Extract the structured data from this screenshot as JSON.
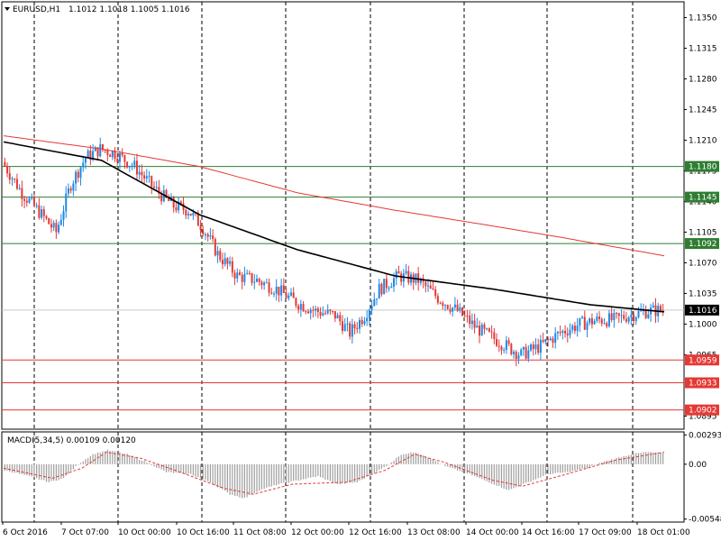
{
  "header": {
    "symbol_label": "EURUSD,H1",
    "ohlc": "1.1012 1.1018 1.1005 1.1016"
  },
  "macd": {
    "label": "MACD(5,34,5) 0.00109 0.00120",
    "axis_labels": [
      {
        "text": "0.00293",
        "value": 0.00293
      },
      {
        "text": "0.00",
        "value": 0.0
      },
      {
        "text": "-0.00548",
        "value": -0.00548
      }
    ]
  },
  "chart_data": {
    "type": "candlestick",
    "symbol": "EURUSD",
    "timeframe": "H1",
    "price_range": [
      1.088,
      1.1368
    ],
    "price_axis_labels": [
      {
        "text": "1.1350",
        "value": 1.135
      },
      {
        "text": "1.1315",
        "value": 1.1315
      },
      {
        "text": "1.1280",
        "value": 1.128
      },
      {
        "text": "1.1245",
        "value": 1.1245
      },
      {
        "text": "1.1210",
        "value": 1.121
      },
      {
        "text": "1.1175",
        "value": 1.1175
      },
      {
        "text": "1.1140",
        "value": 1.114
      },
      {
        "text": "1.1105",
        "value": 1.1105
      },
      {
        "text": "1.1070",
        "value": 1.107
      },
      {
        "text": "1.1035",
        "value": 1.1035
      },
      {
        "text": "1.1000",
        "value": 1.1
      },
      {
        "text": "1.0965",
        "value": 1.0965
      },
      {
        "text": "1.0895",
        "value": 1.0895
      }
    ],
    "time_labels": [
      "6 Oct 2016",
      "7 Oct 07:00",
      "10 Oct 00:00",
      "10 Oct 16:00",
      "11 Oct 08:00",
      "12 Oct 00:00",
      "12 Oct 16:00",
      "13 Oct 08:00",
      "14 Oct 00:00",
      "14 Oct 16:00",
      "17 Oct 09:00",
      "18 Oct 01:00"
    ],
    "levels": [
      {
        "text": "1.1180",
        "value": 1.118,
        "color": "#2e7d32"
      },
      {
        "text": "1.1145",
        "value": 1.1145,
        "color": "#2e7d32"
      },
      {
        "text": "1.1092",
        "value": 1.1092,
        "color": "#2e7d32"
      },
      {
        "text": "1.0959",
        "value": 1.0959,
        "color": "#e53935"
      },
      {
        "text": "1.0933",
        "value": 1.0933,
        "color": "#e53935"
      },
      {
        "text": "1.0902",
        "value": 1.0902,
        "color": "#e53935"
      }
    ],
    "current_price": {
      "text": "1.1016",
      "value": 1.1016
    },
    "close_path": [
      [
        0,
        1.1185
      ],
      [
        8,
        1.115
      ],
      [
        16,
        1.1125
      ],
      [
        22,
        1.1105
      ],
      [
        28,
        1.116
      ],
      [
        34,
        1.119
      ],
      [
        40,
        1.12
      ],
      [
        46,
        1.1195
      ],
      [
        54,
        1.118
      ],
      [
        62,
        1.1155
      ],
      [
        70,
        1.1135
      ],
      [
        76,
        1.113
      ],
      [
        82,
        1.111
      ],
      [
        88,
        1.108
      ],
      [
        96,
        1.1055
      ],
      [
        104,
        1.105
      ],
      [
        112,
        1.104
      ],
      [
        120,
        1.1025
      ],
      [
        128,
        1.1015
      ],
      [
        136,
        1.101
      ],
      [
        142,
        1.099
      ],
      [
        148,
        1.101
      ],
      [
        154,
        1.104
      ],
      [
        162,
        1.1055
      ],
      [
        170,
        1.105
      ],
      [
        178,
        1.103
      ],
      [
        186,
        1.1015
      ],
      [
        194,
        1.0995
      ],
      [
        200,
        1.0985
      ],
      [
        206,
        1.0975
      ],
      [
        212,
        1.0965
      ],
      [
        220,
        1.0975
      ],
      [
        228,
        1.099
      ],
      [
        236,
        1.1
      ],
      [
        244,
        1.1005
      ],
      [
        250,
        1.1005
      ],
      [
        256,
        1.101
      ],
      [
        264,
        1.1015
      ],
      [
        270,
        1.1016
      ]
    ],
    "series": [
      {
        "name": "",
        "color": "#000000",
        "points": [
          [
            0,
            1.1208
          ],
          [
            40,
            1.1187
          ],
          [
            80,
            1.1125
          ],
          [
            120,
            1.1085
          ],
          [
            160,
            1.1055
          ],
          [
            200,
            1.104
          ],
          [
            240,
            1.1022
          ],
          [
            270,
            1.1014
          ]
        ]
      },
      {
        "name": "",
        "color": "#e53935",
        "points": [
          [
            0,
            1.1215
          ],
          [
            40,
            1.12
          ],
          [
            80,
            1.118
          ],
          [
            120,
            1.115
          ],
          [
            160,
            1.113
          ],
          [
            200,
            1.1112
          ],
          [
            230,
            1.1098
          ],
          [
            270,
            1.1078
          ]
        ]
      }
    ],
    "macd_hist_path": [
      [
        0,
        -0.0006
      ],
      [
        10,
        -0.0012
      ],
      [
        18,
        -0.0018
      ],
      [
        24,
        -0.0014
      ],
      [
        30,
        0.0
      ],
      [
        36,
        0.001
      ],
      [
        42,
        0.0014
      ],
      [
        50,
        0.001
      ],
      [
        58,
        0.0002
      ],
      [
        66,
        -0.0008
      ],
      [
        76,
        -0.001
      ],
      [
        84,
        -0.0018
      ],
      [
        92,
        -0.003
      ],
      [
        98,
        -0.0034
      ],
      [
        104,
        -0.0026
      ],
      [
        112,
        -0.002
      ],
      [
        120,
        -0.0016
      ],
      [
        128,
        -0.0012
      ],
      [
        136,
        -0.002
      ],
      [
        144,
        -0.0018
      ],
      [
        150,
        -0.001
      ],
      [
        156,
        -0.0002
      ],
      [
        162,
        0.001
      ],
      [
        168,
        0.0012
      ],
      [
        174,
        0.0006
      ],
      [
        180,
        -0.0002
      ],
      [
        190,
        -0.001
      ],
      [
        200,
        -0.002
      ],
      [
        206,
        -0.0026
      ],
      [
        214,
        -0.0018
      ],
      [
        222,
        -0.001
      ],
      [
        230,
        -0.0008
      ],
      [
        238,
        -0.0004
      ],
      [
        244,
        0.0002
      ],
      [
        250,
        0.0006
      ],
      [
        256,
        0.001
      ],
      [
        262,
        0.0012
      ],
      [
        270,
        0.0011
      ]
    ],
    "macd_signal_path": [
      [
        0,
        -0.0004
      ],
      [
        20,
        -0.0014
      ],
      [
        32,
        -0.0004
      ],
      [
        42,
        0.0012
      ],
      [
        56,
        0.0006
      ],
      [
        70,
        -0.0006
      ],
      [
        90,
        -0.0024
      ],
      [
        102,
        -0.003
      ],
      [
        118,
        -0.002
      ],
      [
        140,
        -0.0018
      ],
      [
        156,
        -0.0006
      ],
      [
        168,
        0.001
      ],
      [
        180,
        0.0002
      ],
      [
        200,
        -0.0016
      ],
      [
        212,
        -0.0022
      ],
      [
        230,
        -0.001
      ],
      [
        250,
        0.0004
      ],
      [
        270,
        0.0012
      ]
    ]
  }
}
